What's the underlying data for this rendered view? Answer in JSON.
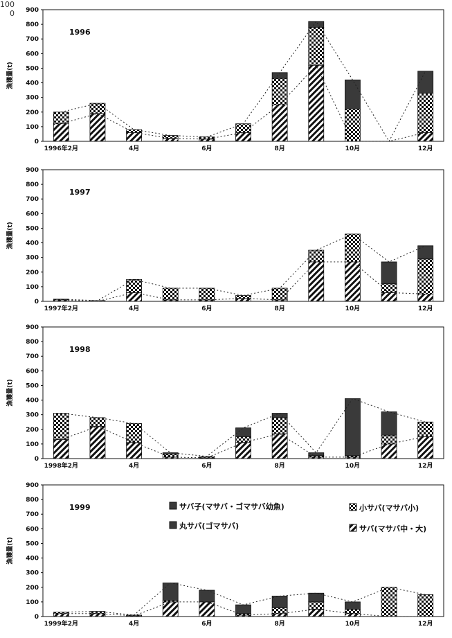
{
  "corner_label": "100\n0",
  "legend": {
    "series": [
      {
        "key": "saba_ko",
        "label": "サバ子(マサバ・ゴマサバ幼魚)",
        "pattern": "solid"
      },
      {
        "key": "ko_saba",
        "label": "小サバ(マサバ小)",
        "pattern": "check"
      },
      {
        "key": "maru_saba",
        "label": "丸サバ(ゴマサバ)",
        "pattern": "solid"
      },
      {
        "key": "saba_chudai",
        "label": "サバ(マサバ中・大)",
        "pattern": "hatch"
      }
    ]
  },
  "colors": {
    "dark": "#3a3a3a",
    "ink": "#111111"
  },
  "chart_data": [
    {
      "type": "bar",
      "year_label": "1996",
      "ylabel": "漁獲量(t)",
      "ylim": [
        0,
        900
      ],
      "yticks": [
        0,
        100,
        200,
        300,
        400,
        500,
        600,
        700,
        800,
        900
      ],
      "months": [
        "2",
        "3",
        "4",
        "5",
        "6",
        "7",
        "8",
        "9",
        "10",
        "11",
        "12"
      ],
      "xtick_labels": [
        "1996年2月",
        "4月",
        "6月",
        "8月",
        "10月",
        "12月"
      ],
      "series": [
        {
          "name": "サバ(マサバ中・大)",
          "pattern": "hatch",
          "values": [
            120,
            190,
            60,
            20,
            15,
            60,
            250,
            520,
            0,
            0,
            60
          ]
        },
        {
          "name": "小サバ(マサバ小)",
          "pattern": "check",
          "values": [
            80,
            70,
            20,
            20,
            15,
            60,
            180,
            260,
            220,
            0,
            270
          ]
        },
        {
          "name": "サバ子(マサバ・ゴマサバ幼魚)",
          "pattern": "solid",
          "values": [
            0,
            0,
            0,
            0,
            0,
            0,
            40,
            40,
            200,
            0,
            150
          ]
        },
        {
          "name": "丸サバ(ゴマサバ)",
          "pattern": "solid",
          "values": [
            0,
            0,
            0,
            0,
            0,
            0,
            0,
            0,
            0,
            0,
            0
          ]
        }
      ]
    },
    {
      "type": "bar",
      "year_label": "1997",
      "ylabel": "漁獲量(t)",
      "ylim": [
        0,
        900
      ],
      "yticks": [
        0,
        100,
        200,
        300,
        400,
        500,
        600,
        700,
        800,
        900
      ],
      "months": [
        "2",
        "3",
        "4",
        "5",
        "6",
        "7",
        "8",
        "9",
        "10",
        "11",
        "12"
      ],
      "xtick_labels": [
        "1997年2月",
        "4月",
        "6月",
        "8月",
        "10月",
        "12月"
      ],
      "series": [
        {
          "name": "サバ(マサバ中・大)",
          "pattern": "hatch",
          "values": [
            10,
            0,
            60,
            10,
            10,
            20,
            10,
            270,
            270,
            60,
            50
          ]
        },
        {
          "name": "小サバ(マサバ小)",
          "pattern": "check",
          "values": [
            5,
            5,
            90,
            80,
            80,
            20,
            80,
            80,
            190,
            60,
            240
          ]
        },
        {
          "name": "サバ子(マサバ・ゴマサバ幼魚)",
          "pattern": "solid",
          "values": [
            0,
            0,
            0,
            0,
            0,
            0,
            0,
            0,
            0,
            150,
            90
          ]
        },
        {
          "name": "丸サバ(ゴマサバ)",
          "pattern": "solid",
          "values": [
            0,
            0,
            0,
            0,
            0,
            0,
            0,
            0,
            0,
            0,
            0
          ]
        }
      ]
    },
    {
      "type": "bar",
      "year_label": "1998",
      "ylabel": "漁獲量(t)",
      "ylim": [
        0,
        900
      ],
      "yticks": [
        0,
        100,
        200,
        300,
        400,
        500,
        600,
        700,
        800,
        900
      ],
      "months": [
        "2",
        "3",
        "4",
        "5",
        "6",
        "7",
        "8",
        "9",
        "10",
        "11",
        "12"
      ],
      "xtick_labels": [
        "1998年2月",
        "4月",
        "6月",
        "8月",
        "10月",
        "12月"
      ],
      "series": [
        {
          "name": "サバ(マサバ中・大)",
          "pattern": "hatch",
          "values": [
            130,
            220,
            110,
            10,
            5,
            110,
            170,
            10,
            10,
            100,
            150
          ]
        },
        {
          "name": "小サバ(マサバ小)",
          "pattern": "check",
          "values": [
            180,
            60,
            130,
            20,
            10,
            40,
            110,
            10,
            10,
            60,
            100
          ]
        },
        {
          "name": "サバ子(マサバ・ゴマサバ幼魚)",
          "pattern": "solid",
          "values": [
            0,
            0,
            0,
            10,
            0,
            60,
            30,
            20,
            390,
            160,
            0
          ]
        },
        {
          "name": "丸サバ(ゴマサバ)",
          "pattern": "solid",
          "values": [
            0,
            0,
            0,
            0,
            0,
            0,
            0,
            0,
            0,
            0,
            0
          ]
        }
      ]
    },
    {
      "type": "bar",
      "year_label": "1999",
      "ylabel": "漁獲量(t)",
      "ylim": [
        0,
        900
      ],
      "yticks": [
        0,
        100,
        200,
        300,
        400,
        500,
        600,
        700,
        800,
        900
      ],
      "months": [
        "2",
        "3",
        "4",
        "5",
        "6",
        "7",
        "8",
        "9",
        "10",
        "11",
        "12"
      ],
      "xtick_labels": [
        "1999年2月",
        "4月",
        "6月",
        "8月",
        "10月",
        "12月"
      ],
      "series": [
        {
          "name": "サバ(マサバ中・大)",
          "pattern": "hatch",
          "values": [
            20,
            20,
            5,
            100,
            100,
            10,
            20,
            50,
            20,
            0,
            0
          ]
        },
        {
          "name": "小サバ(マサバ小)",
          "pattern": "check",
          "values": [
            10,
            15,
            5,
            10,
            0,
            10,
            40,
            50,
            30,
            200,
            150
          ]
        },
        {
          "name": "サバ子(マサバ・ゴマサバ幼魚)",
          "pattern": "solid",
          "values": [
            0,
            0,
            0,
            120,
            80,
            60,
            80,
            60,
            50,
            0,
            0
          ]
        },
        {
          "name": "丸サバ(ゴマサバ)",
          "pattern": "solid",
          "values": [
            0,
            0,
            0,
            0,
            0,
            0,
            0,
            0,
            0,
            0,
            0
          ]
        }
      ]
    }
  ]
}
